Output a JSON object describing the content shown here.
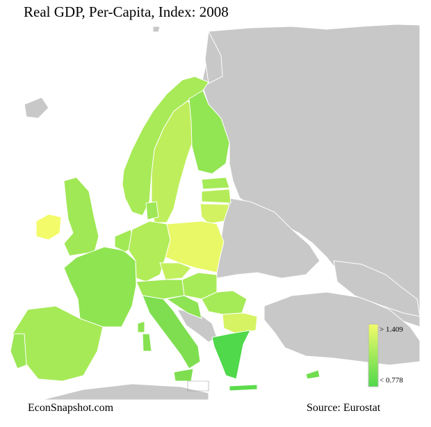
{
  "title": "Real GDP, Per-Capita, Index: 2008",
  "footer": {
    "site": "EconSnapshot.com",
    "source": "Source: Eurostat"
  },
  "legend": {
    "max_label": "> 1.409",
    "min_label": "< 0.778",
    "color_high": "#f3fb6a",
    "color_low": "#4fd94b"
  },
  "colors": {
    "non_data": "#c8c8c8",
    "border": "#ffffff",
    "sea": "#ffffff"
  }
}
